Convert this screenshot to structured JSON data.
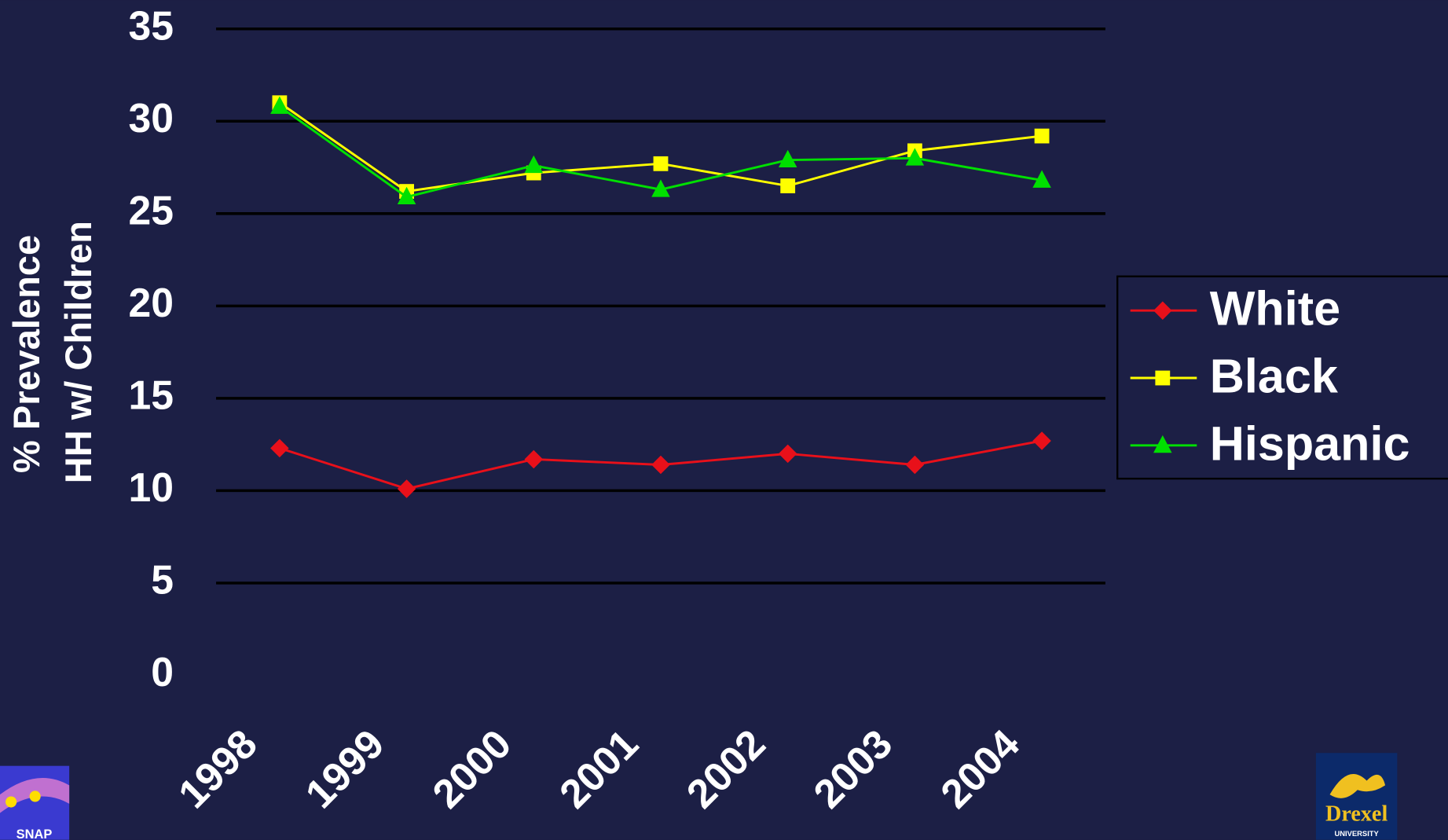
{
  "chart_data": {
    "type": "line",
    "y_label": [
      "% Prevalence",
      "HH w/ Children"
    ],
    "categories": [
      "1998",
      "1999",
      "2000",
      "2001",
      "2002",
      "2003",
      "2004"
    ],
    "series": [
      {
        "name": "White",
        "color": "#e8101a",
        "marker": "diamond",
        "values": [
          12.3,
          10.1,
          11.7,
          11.4,
          12.0,
          11.4,
          12.7
        ]
      },
      {
        "name": "Black",
        "color": "#ffff00",
        "marker": "square",
        "values": [
          31.0,
          26.2,
          27.2,
          27.7,
          26.5,
          28.4,
          29.2
        ]
      },
      {
        "name": "Hispanic",
        "color": "#00e000",
        "marker": "triangle",
        "values": [
          30.8,
          25.9,
          27.6,
          26.3,
          27.9,
          28.0,
          26.8
        ]
      }
    ],
    "ylim": [
      0,
      35
    ],
    "yticks": [
      0,
      5,
      10,
      15,
      20,
      25,
      30,
      35
    ],
    "grid": true,
    "legend": "right"
  },
  "logos": {
    "left": "SNAP",
    "right": [
      "Drexel",
      "UNIVERSITY"
    ]
  }
}
